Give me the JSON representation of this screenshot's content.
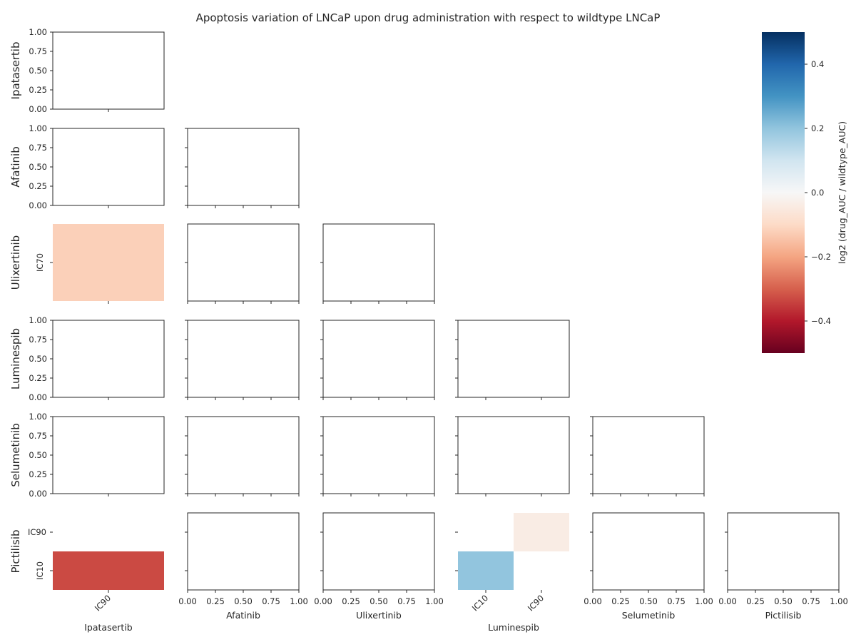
{
  "chart_data": {
    "type": "heatmap",
    "title": "Apoptosis variation of LNCaP upon drug administration with respect to wildtype LNCaP",
    "drugs": [
      "Ipatasertib",
      "Afatinib",
      "Ulixertinib",
      "Luminespib",
      "Selumetinib",
      "Pictilisib"
    ],
    "panels": [
      {
        "row": 0,
        "col": 0,
        "xcats": [
          "IC90"
        ],
        "ycats": [],
        "cells": []
      },
      {
        "row": 1,
        "col": 0,
        "xcats": [
          "IC90"
        ],
        "ycats": [],
        "cells": []
      },
      {
        "row": 1,
        "col": 1,
        "xcats": [],
        "ycats": [],
        "cells": []
      },
      {
        "row": 2,
        "col": 0,
        "xcats": [
          "IC90"
        ],
        "ycats": [
          "IC70"
        ],
        "cells": [
          {
            "x": "IC90",
            "y": "IC70",
            "value": -0.12
          }
        ]
      },
      {
        "row": 2,
        "col": 1,
        "xcats": [],
        "ycats": [
          "IC70"
        ],
        "cells": []
      },
      {
        "row": 2,
        "col": 2,
        "xcats": [],
        "ycats": [
          "IC70"
        ],
        "cells": []
      },
      {
        "row": 3,
        "col": 0,
        "xcats": [
          "IC90"
        ],
        "ycats": [],
        "cells": []
      },
      {
        "row": 3,
        "col": 1,
        "xcats": [],
        "ycats": [],
        "cells": []
      },
      {
        "row": 3,
        "col": 2,
        "xcats": [],
        "ycats": [],
        "cells": []
      },
      {
        "row": 3,
        "col": 3,
        "xcats": [
          "IC10",
          "IC90"
        ],
        "ycats": [],
        "cells": []
      },
      {
        "row": 4,
        "col": 0,
        "xcats": [
          "IC90"
        ],
        "ycats": [],
        "cells": []
      },
      {
        "row": 4,
        "col": 1,
        "xcats": [],
        "ycats": [],
        "cells": []
      },
      {
        "row": 4,
        "col": 2,
        "xcats": [],
        "ycats": [],
        "cells": []
      },
      {
        "row": 4,
        "col": 3,
        "xcats": [
          "IC10",
          "IC90"
        ],
        "ycats": [],
        "cells": []
      },
      {
        "row": 4,
        "col": 4,
        "xcats": [],
        "ycats": [],
        "cells": []
      },
      {
        "row": 5,
        "col": 0,
        "xcats": [
          "IC90"
        ],
        "ycats": [
          "IC90",
          "IC10"
        ],
        "cells": [
          {
            "x": "IC90",
            "y": "IC10",
            "value": -0.33
          }
        ]
      },
      {
        "row": 5,
        "col": 1,
        "xcats": [],
        "ycats": [
          "IC90",
          "IC10"
        ],
        "cells": []
      },
      {
        "row": 5,
        "col": 2,
        "xcats": [],
        "ycats": [
          "IC90",
          "IC10"
        ],
        "cells": []
      },
      {
        "row": 5,
        "col": 3,
        "xcats": [
          "IC10",
          "IC90"
        ],
        "ycats": [
          "IC90",
          "IC10"
        ],
        "cells": [
          {
            "x": "IC10",
            "y": "IC10",
            "value": 0.2
          },
          {
            "x": "IC90",
            "y": "IC90",
            "value": -0.04
          }
        ]
      },
      {
        "row": 5,
        "col": 4,
        "xcats": [],
        "ycats": [
          "IC90",
          "IC10"
        ],
        "cells": []
      },
      {
        "row": 5,
        "col": 5,
        "xcats": [],
        "ycats": [
          "IC90",
          "IC10"
        ],
        "cells": []
      }
    ],
    "empty_axis_range": [
      0,
      1
    ],
    "empty_ticks": [
      "0.00",
      "0.25",
      "0.50",
      "0.75",
      "1.00"
    ],
    "colorbar": {
      "label": "log2 (drug_AUC / wildtype_AUC)",
      "colormap": "RdBu",
      "range": [
        -0.5,
        0.5
      ],
      "ticks": [
        0.4,
        0.2,
        0.0,
        -0.2,
        -0.4
      ],
      "tick_labels": [
        "0.4",
        "0.2",
        "0.0",
        "−0.2",
        "−0.4"
      ],
      "stops": [
        "#67001f",
        "#b2182b",
        "#d6604d",
        "#f4a582",
        "#fddbc7",
        "#f7f7f7",
        "#d1e5f0",
        "#92c5de",
        "#4393c3",
        "#2166ac",
        "#053061"
      ]
    }
  }
}
